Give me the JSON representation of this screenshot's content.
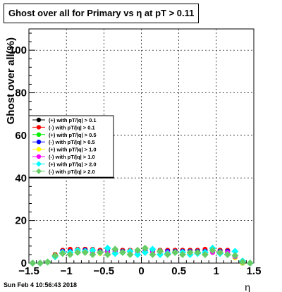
{
  "footer": {
    "timestamp": "Sun Feb  4 10:56:43 2018"
  },
  "chart_data": {
    "type": "scatter",
    "title": "Ghost over all for Primary vs  η at pT > 0.11",
    "xlabel": "η",
    "ylabel": "Ghost over all(%)",
    "xlim": [
      -1.5,
      1.5
    ],
    "ylim": [
      0,
      110
    ],
    "xticks": [
      -1.5,
      -1,
      -0.5,
      0,
      0.5,
      1,
      1.5
    ],
    "xtick_labels": [
      "−1.5",
      "−1",
      "−0.5",
      "0",
      "0.5",
      "1",
      "1.5"
    ],
    "yticks": [
      0,
      20,
      40,
      60,
      80,
      100
    ],
    "ytick_labels": [
      "0",
      "20",
      "40",
      "60",
      "80",
      "100"
    ],
    "grid": true,
    "legend_position": "left-middle",
    "x": [
      -1.45,
      -1.35,
      -1.25,
      -1.15,
      -1.05,
      -0.95,
      -0.85,
      -0.75,
      -0.65,
      -0.55,
      -0.45,
      -0.35,
      -0.25,
      -0.15,
      -0.05,
      0.05,
      0.15,
      0.25,
      0.35,
      0.45,
      0.55,
      0.65,
      0.75,
      0.85,
      0.95,
      1.05,
      1.15,
      1.25,
      1.35,
      1.45
    ],
    "series": [
      {
        "name": "(+) with pT/|q| > 0.1",
        "color": "#000000",
        "marker": "circle",
        "values": [
          0,
          0,
          0.5,
          4,
          6,
          6,
          6.5,
          6.5,
          6,
          6,
          6.5,
          6,
          6,
          6,
          6,
          6,
          6,
          6,
          6,
          6,
          6,
          6,
          6,
          6,
          6,
          6,
          6,
          3,
          0,
          0
        ]
      },
      {
        "name": "(-) with pT/|q| > 0.1",
        "color": "#ff0000",
        "marker": "circle",
        "values": [
          0,
          0,
          0.5,
          4,
          6,
          6.5,
          6.5,
          6.5,
          6.5,
          6,
          6.5,
          6,
          6,
          6,
          6,
          6,
          6,
          6,
          6,
          6,
          6,
          6,
          6,
          6.5,
          6.5,
          6,
          6,
          3,
          0,
          0
        ]
      },
      {
        "name": "(+) with pT/|q| > 0.5",
        "color": "#00ee00",
        "marker": "circle",
        "values": [
          0,
          0,
          0.5,
          3,
          5,
          5,
          5,
          5.5,
          5,
          5,
          5,
          5,
          5,
          5,
          5,
          5,
          5,
          5,
          5,
          5,
          5,
          5,
          5,
          5,
          5,
          5,
          5,
          2.5,
          0,
          0
        ]
      },
      {
        "name": "(-) with pT/|q| > 0.5",
        "color": "#0000ff",
        "marker": "circle",
        "values": [
          0,
          0,
          0.5,
          3.5,
          5.5,
          5.5,
          5.5,
          6,
          5.5,
          5.5,
          5.5,
          5.5,
          5.5,
          5.5,
          5.5,
          5.5,
          5.5,
          5.5,
          5.5,
          5.5,
          5.5,
          5.5,
          5.5,
          5.5,
          5.5,
          5.5,
          5.5,
          3,
          0,
          0
        ]
      },
      {
        "name": "(+) with pT/|q| > 1.0",
        "color": "#ffff00",
        "marker": "circle",
        "values": [
          0,
          0,
          0.5,
          3,
          4.5,
          5,
          5,
          5,
          5,
          4.5,
          5,
          4.5,
          5,
          5,
          5,
          5,
          5,
          5,
          4.5,
          5,
          5,
          5,
          4.5,
          5,
          5,
          5,
          5,
          2.5,
          0,
          0
        ]
      },
      {
        "name": "(-) with pT/|q| > 1.0",
        "color": "#ff00ff",
        "marker": "circle",
        "values": [
          0,
          0,
          0.5,
          3,
          5,
          5,
          5,
          5,
          5,
          5,
          5,
          5,
          5,
          5,
          5,
          5,
          5,
          5,
          5,
          5,
          5,
          5,
          5,
          5,
          5,
          5,
          5,
          3,
          0.5,
          0
        ]
      },
      {
        "name": "(+) with pT/|q| > 2.0",
        "color": "#00ffff",
        "marker": "diamond",
        "values": [
          0,
          0,
          0.5,
          3,
          5,
          5,
          6,
          5.5,
          6,
          5,
          7,
          4.5,
          5,
          5.5,
          4,
          5,
          6.5,
          4,
          4.5,
          5,
          5,
          4,
          4.5,
          5,
          7,
          4.5,
          4,
          5.5,
          1,
          0
        ]
      },
      {
        "name": "(-) with pT/|q| > 2.0",
        "color": "#66cc66",
        "marker": "diamond",
        "values": [
          0,
          0,
          0.5,
          3.5,
          4.5,
          4,
          5,
          5,
          4,
          5,
          4,
          6.5,
          5,
          4,
          6,
          7,
          4,
          5.5,
          4,
          5,
          4,
          5,
          5,
          4,
          6,
          5,
          4,
          3.5,
          0.5,
          0
        ]
      }
    ]
  }
}
